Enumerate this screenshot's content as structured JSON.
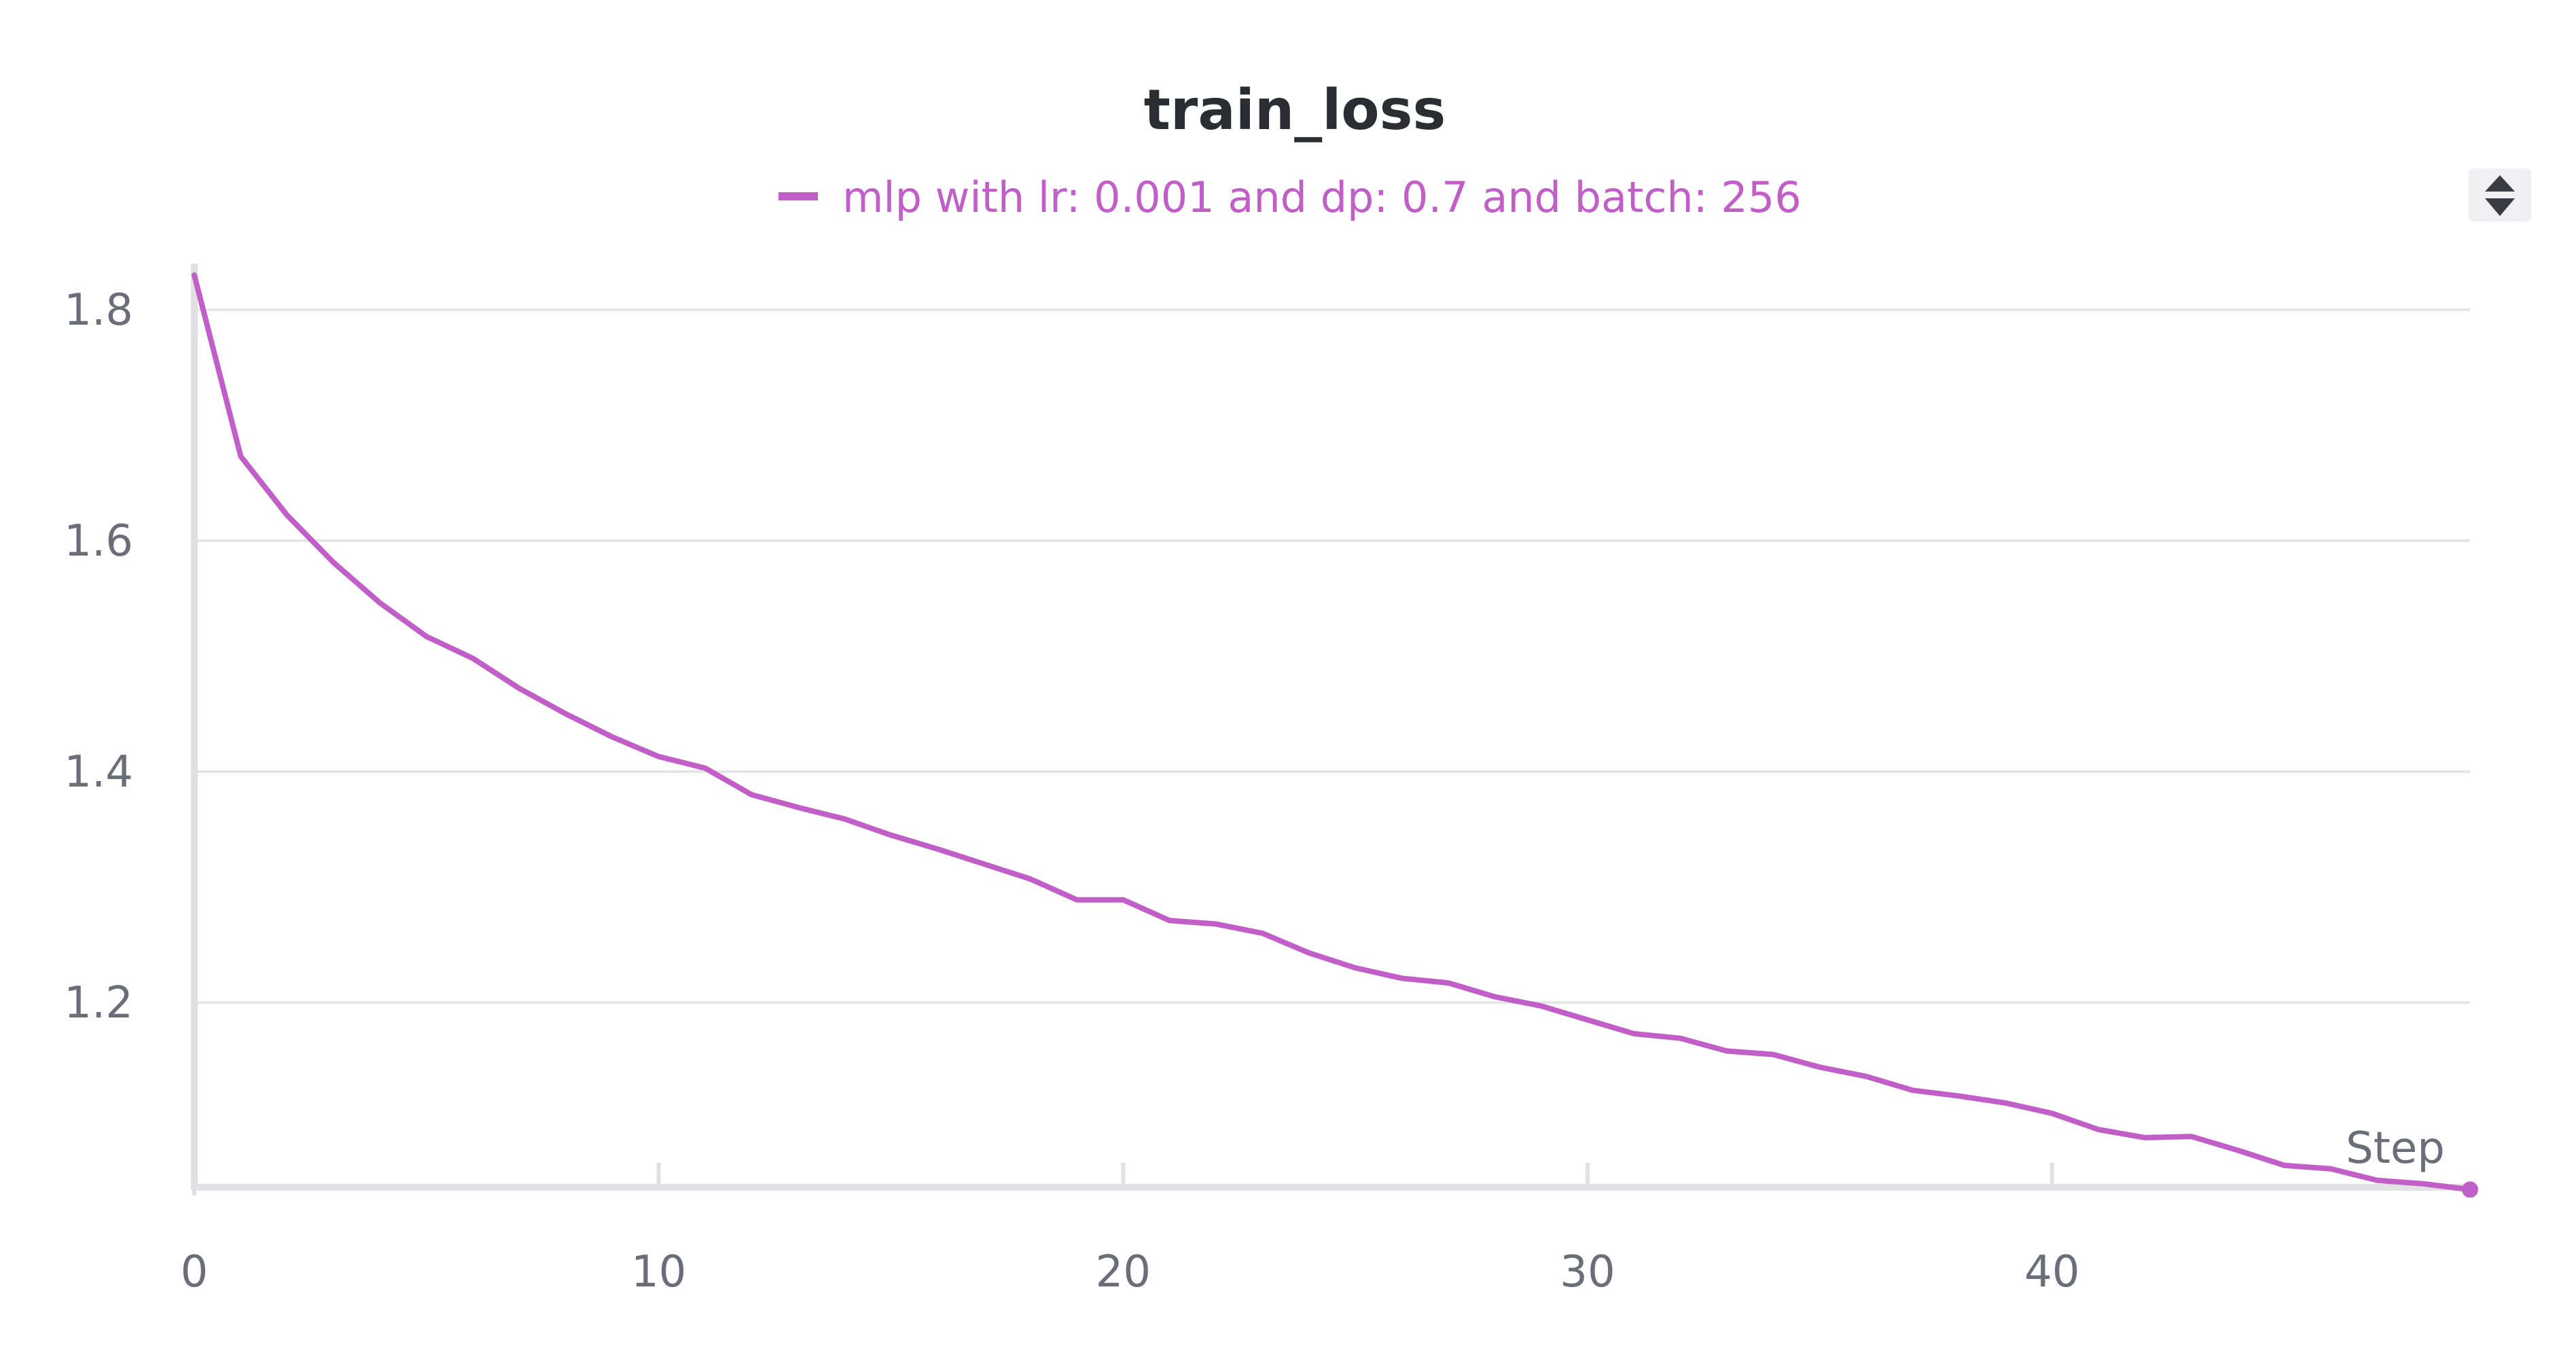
{
  "chart_data": {
    "type": "line",
    "title": "train_loss",
    "xlabel": "Step",
    "ylabel": "",
    "xlim": [
      0,
      49
    ],
    "ylim": [
      1.04,
      1.84
    ],
    "x_ticks": [
      0,
      10,
      20,
      30,
      40
    ],
    "y_ticks": [
      1.2,
      1.4,
      1.6,
      1.8
    ],
    "grid": true,
    "legend_position": "top-center",
    "series": [
      {
        "name": "mlp with lr: 0.001 and dp: 0.7 and batch: 256",
        "color": "#c25ec8",
        "x": [
          0,
          1,
          2,
          3,
          4,
          5,
          6,
          7,
          8,
          9,
          10,
          11,
          12,
          13,
          14,
          15,
          16,
          17,
          18,
          19,
          20,
          21,
          22,
          23,
          24,
          25,
          26,
          27,
          28,
          29,
          30,
          31,
          32,
          33,
          34,
          35,
          36,
          37,
          38,
          39,
          40,
          41,
          42,
          43,
          44,
          45,
          46,
          47,
          48,
          49
        ],
        "y": [
          1.83,
          1.673,
          1.622,
          1.581,
          1.546,
          1.517,
          1.498,
          1.472,
          1.45,
          1.43,
          1.413,
          1.403,
          1.38,
          1.369,
          1.359,
          1.345,
          1.333,
          1.32,
          1.307,
          1.289,
          1.289,
          1.271,
          1.268,
          1.26,
          1.243,
          1.23,
          1.221,
          1.217,
          1.205,
          1.197,
          1.185,
          1.173,
          1.169,
          1.158,
          1.155,
          1.144,
          1.136,
          1.124,
          1.119,
          1.113,
          1.104,
          1.09,
          1.083,
          1.084,
          1.072,
          1.059,
          1.056,
          1.046,
          1.043,
          1.038
        ]
      }
    ]
  },
  "legend": {
    "scroll_icon": "chevron-up-down-icon"
  }
}
